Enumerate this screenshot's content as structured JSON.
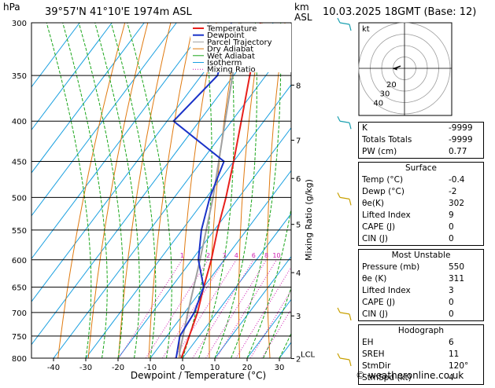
{
  "header": {
    "location": "39°57'N  41°10'E  1974m  ASL",
    "datetime": "10.03.2025  18GMT  (Base: 12)",
    "hpa_unit": "hPa",
    "km_unit": "km",
    "asl_unit": "ASL"
  },
  "legend": [
    "Temperature",
    "Dewpoint",
    "Parcel Trajectory",
    "Dry Adiabat",
    "Wet Adiabat",
    "Isotherm",
    "Mixing Ratio"
  ],
  "colors": {
    "temperature": "#e8201c",
    "dewpoint": "#1a32c8",
    "parcel": "#a0a0a0",
    "dry_adiabat": "#e07a10",
    "wet_adiabat": "#1aa61a",
    "isotherm": "#1aa0e0",
    "mixing_ratio": "#d01ab0",
    "wind_barb": "#c8a000"
  },
  "chart_data": {
    "type": "skew-t",
    "xlabel": "Dewpoint / Temperature (°C)",
    "ylabel_right": "Mixing Ratio (g/kg)",
    "pressure_levels": [
      300,
      350,
      400,
      450,
      500,
      550,
      600,
      650,
      700,
      750,
      800
    ],
    "x_ticks": [
      -40,
      -30,
      -20,
      -10,
      0,
      10,
      20,
      30
    ],
    "km_ticks": [
      {
        "label": "8",
        "p": 360
      },
      {
        "label": "7",
        "p": 423
      },
      {
        "label": "6",
        "p": 473
      },
      {
        "label": "5",
        "p": 541
      },
      {
        "label": "4",
        "p": 623
      },
      {
        "label": "3",
        "p": 707
      },
      {
        "label": "2",
        "p": 801
      }
    ],
    "lcl_label": "LCL",
    "lcl_p": 790,
    "mixing_ratio_labels": [
      "1",
      "2",
      "3",
      "4",
      "6",
      "8",
      "10",
      "15",
      "20",
      "25"
    ],
    "mixing_ratio_values": [
      1,
      2,
      3,
      4,
      6,
      8,
      10,
      15,
      20,
      25
    ],
    "temperature": [
      {
        "p": 800,
        "t": -0.4
      },
      {
        "p": 760,
        "t": -2.5
      },
      {
        "p": 700,
        "t": -6
      },
      {
        "p": 650,
        "t": -10
      },
      {
        "p": 600,
        "t": -14
      },
      {
        "p": 550,
        "t": -19
      },
      {
        "p": 500,
        "t": -24
      },
      {
        "p": 450,
        "t": -30
      },
      {
        "p": 400,
        "t": -37
      },
      {
        "p": 350,
        "t": -45
      },
      {
        "p": 300,
        "t": -54
      }
    ],
    "dewpoint": [
      {
        "p": 800,
        "t": -2
      },
      {
        "p": 750,
        "t": -6
      },
      {
        "p": 700,
        "t": -7
      },
      {
        "p": 650,
        "t": -10
      },
      {
        "p": 600,
        "t": -18
      },
      {
        "p": 550,
        "t": -24
      },
      {
        "p": 500,
        "t": -29
      },
      {
        "p": 450,
        "t": -33
      },
      {
        "p": 400,
        "t": -58
      },
      {
        "p": 350,
        "t": -55
      },
      {
        "p": 300,
        "t": -63
      }
    ],
    "parcel": [
      {
        "p": 800,
        "t": -0.4
      },
      {
        "p": 790,
        "t": -2
      },
      {
        "p": 700,
        "t": -9
      },
      {
        "p": 600,
        "t": -17.5
      },
      {
        "p": 500,
        "t": -28
      },
      {
        "p": 400,
        "t": -42
      },
      {
        "p": 300,
        "t": -60
      }
    ]
  },
  "hodograph": {
    "unit": "kt",
    "ring_labels": [
      "20",
      "30",
      "40"
    ],
    "trace": [
      {
        "dir": 120,
        "spd": 4
      },
      {
        "dir": 95,
        "spd": 7
      },
      {
        "dir": 88,
        "spd": 10
      }
    ]
  },
  "indices": [
    {
      "label": "K",
      "value": "-9999"
    },
    {
      "label": "Totals Totals",
      "value": "-9999"
    },
    {
      "label": "PW (cm)",
      "value": "0.77"
    }
  ],
  "surface": {
    "title": "Surface",
    "rows": [
      {
        "label": "Temp (°C)",
        "value": "-0.4"
      },
      {
        "label": "Dewp (°C)",
        "value": "-2"
      },
      {
        "label": "θe(K)",
        "value": "302"
      },
      {
        "label": "Lifted Index",
        "value": "9"
      },
      {
        "label": "CAPE (J)",
        "value": "0"
      },
      {
        "label": "CIN (J)",
        "value": "0"
      }
    ]
  },
  "most_unstable": {
    "title": "Most Unstable",
    "rows": [
      {
        "label": "Pressure (mb)",
        "value": "550"
      },
      {
        "label": "θe (K)",
        "value": "311"
      },
      {
        "label": "Lifted Index",
        "value": "3"
      },
      {
        "label": "CAPE (J)",
        "value": "0"
      },
      {
        "label": "CIN (J)",
        "value": "0"
      }
    ]
  },
  "hodograph_box": {
    "title": "Hodograph",
    "rows": [
      {
        "label": "EH",
        "value": "6"
      },
      {
        "label": "SREH",
        "value": "11"
      },
      {
        "label": "StmDir",
        "value": "120°"
      },
      {
        "label": "StmSpd (kt)",
        "value": "4"
      }
    ]
  },
  "footer": "© weatheronline.co.uk"
}
